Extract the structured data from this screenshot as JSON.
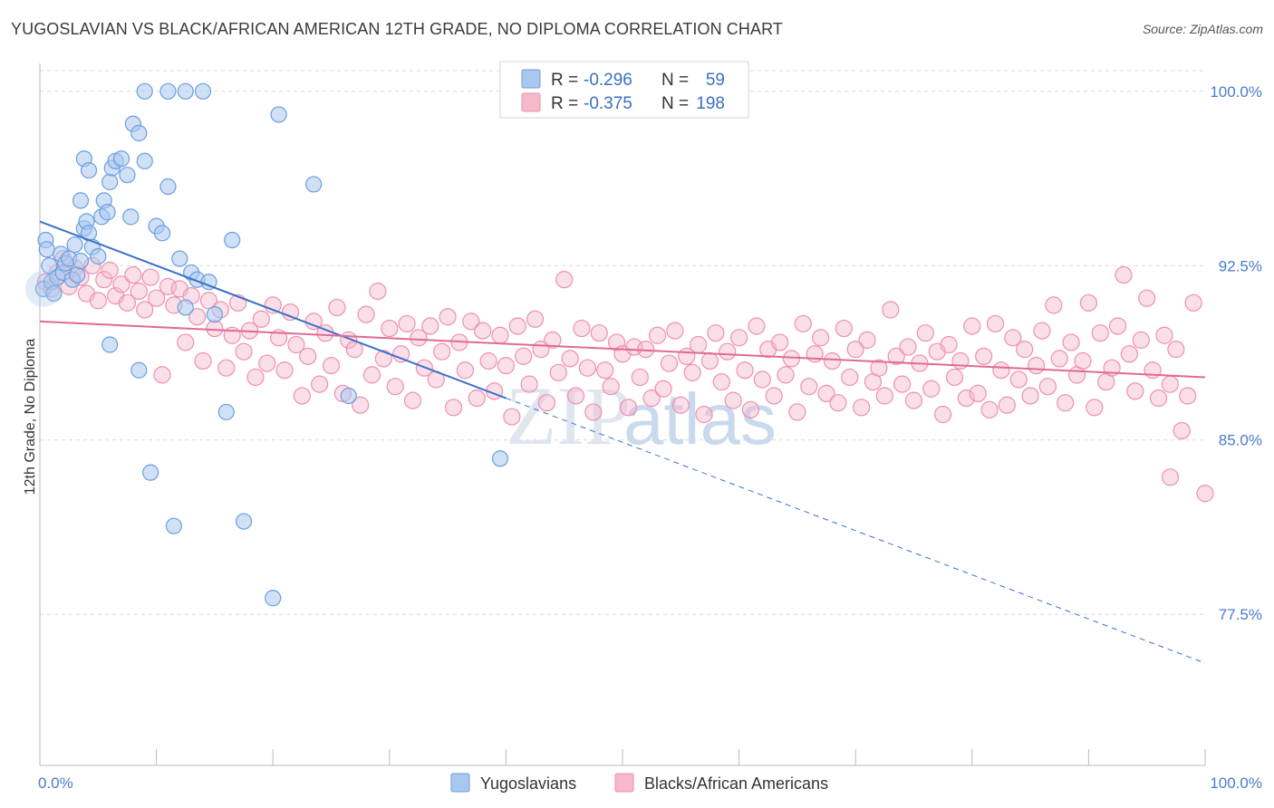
{
  "title": "YUGOSLAVIAN VS BLACK/AFRICAN AMERICAN 12TH GRADE, NO DIPLOMA CORRELATION CHART",
  "source": "Source: ZipAtlas.com",
  "watermark": "ZIPatlas",
  "colors": {
    "blue_fill": "#a9c8ef",
    "blue_stroke": "#6b9de0",
    "blue_line": "#3a72c8",
    "pink_fill": "#f6b9cc",
    "pink_stroke": "#ee8fae",
    "pink_line": "#e06a95",
    "tick_label": "#4a7cc9",
    "grid": "#d9d9d9"
  },
  "chart_data": {
    "type": "scatter",
    "xlabel": "",
    "ylabel": "12th Grade, No Diploma",
    "xlim": [
      0,
      100
    ],
    "ylim": [
      71.0,
      101.2
    ],
    "x_tick_labels": [
      "0.0%",
      "100.0%"
    ],
    "y_ticks": [
      77.5,
      85.0,
      92.5,
      100.0
    ],
    "y_tick_labels": [
      "77.5%",
      "85.0%",
      "92.5%",
      "100.0%"
    ],
    "grid": "horizontal dashed",
    "legend": {
      "placement": "top-center",
      "rows": [
        {
          "r_label": "R =",
          "r_value": "-0.296",
          "n_label": "N =",
          "n_value": "59"
        },
        {
          "r_label": "R =",
          "r_value": "-0.375",
          "n_label": "N =",
          "n_value": "198"
        }
      ]
    },
    "series": [
      {
        "name": "Yugoslavians",
        "trend": {
          "x0": 0,
          "y0": 94.4,
          "x1": 40,
          "y1": 86.8,
          "dash_to_x": 100,
          "dash_to_y": 75.4
        },
        "points": [
          [
            0.3,
            91.5
          ],
          [
            0.5,
            93.6
          ],
          [
            0.6,
            93.2
          ],
          [
            0.8,
            92.5
          ],
          [
            1.0,
            91.8
          ],
          [
            1.2,
            91.3
          ],
          [
            1.5,
            92.0
          ],
          [
            1.8,
            93.0
          ],
          [
            2.0,
            92.2
          ],
          [
            2.2,
            92.6
          ],
          [
            2.5,
            92.8
          ],
          [
            2.8,
            91.9
          ],
          [
            3.0,
            93.4
          ],
          [
            3.2,
            92.1
          ],
          [
            3.5,
            92.7
          ],
          [
            3.8,
            94.1
          ],
          [
            4.0,
            94.4
          ],
          [
            4.2,
            93.9
          ],
          [
            4.5,
            93.3
          ],
          [
            5.0,
            92.9
          ],
          [
            5.3,
            94.6
          ],
          [
            5.5,
            95.3
          ],
          [
            5.8,
            94.8
          ],
          [
            6.0,
            96.1
          ],
          [
            6.2,
            96.7
          ],
          [
            6.5,
            97.0
          ],
          [
            7.0,
            97.1
          ],
          [
            7.5,
            96.4
          ],
          [
            7.8,
            94.6
          ],
          [
            8.0,
            98.6
          ],
          [
            8.5,
            98.2
          ],
          [
            9.0,
            97.0
          ],
          [
            3.5,
            95.3
          ],
          [
            3.8,
            97.1
          ],
          [
            4.2,
            96.6
          ],
          [
            10.0,
            94.2
          ],
          [
            10.5,
            93.9
          ],
          [
            11.0,
            95.9
          ],
          [
            12.0,
            92.8
          ],
          [
            12.5,
            90.7
          ],
          [
            13.0,
            92.2
          ],
          [
            13.5,
            91.9
          ],
          [
            14.5,
            91.8
          ],
          [
            15.0,
            90.4
          ],
          [
            16.0,
            86.2
          ],
          [
            16.5,
            93.6
          ],
          [
            17.5,
            81.5
          ],
          [
            20.0,
            78.2
          ],
          [
            20.5,
            99.0
          ],
          [
            23.5,
            96.0
          ],
          [
            26.5,
            86.9
          ],
          [
            8.5,
            88.0
          ],
          [
            6.0,
            89.1
          ],
          [
            9.5,
            83.6
          ],
          [
            11.5,
            81.3
          ],
          [
            39.5,
            84.2
          ],
          [
            9.0,
            100.0
          ],
          [
            11.0,
            100.0
          ],
          [
            12.5,
            100.0
          ],
          [
            14.0,
            100.0
          ]
        ]
      },
      {
        "name": "Blacks/African Americans",
        "trend": {
          "x0": 0,
          "y0": 90.1,
          "x1": 100,
          "y1": 87.7
        },
        "points": [
          [
            0.5,
            91.8
          ],
          [
            1.0,
            91.5
          ],
          [
            1.5,
            92.2
          ],
          [
            2.0,
            92.8
          ],
          [
            2.5,
            91.6
          ],
          [
            3.0,
            92.4
          ],
          [
            3.5,
            92.0
          ],
          [
            4.0,
            91.3
          ],
          [
            4.5,
            92.5
          ],
          [
            5.0,
            91.0
          ],
          [
            5.5,
            91.9
          ],
          [
            6.0,
            92.3
          ],
          [
            6.5,
            91.2
          ],
          [
            7.0,
            91.7
          ],
          [
            7.5,
            90.9
          ],
          [
            8.0,
            92.1
          ],
          [
            8.5,
            91.4
          ],
          [
            9.0,
            90.6
          ],
          [
            9.5,
            92.0
          ],
          [
            10.0,
            91.1
          ],
          [
            10.5,
            87.8
          ],
          [
            11.0,
            91.6
          ],
          [
            11.5,
            90.8
          ],
          [
            12.0,
            91.5
          ],
          [
            12.5,
            89.2
          ],
          [
            13.0,
            91.2
          ],
          [
            13.5,
            90.3
          ],
          [
            14.0,
            88.4
          ],
          [
            14.5,
            91.0
          ],
          [
            15.0,
            89.8
          ],
          [
            15.5,
            90.6
          ],
          [
            16.0,
            88.1
          ],
          [
            16.5,
            89.5
          ],
          [
            17.0,
            90.9
          ],
          [
            17.5,
            88.8
          ],
          [
            18.0,
            89.7
          ],
          [
            18.5,
            87.7
          ],
          [
            19.0,
            90.2
          ],
          [
            19.5,
            88.3
          ],
          [
            20.0,
            90.8
          ],
          [
            20.5,
            89.4
          ],
          [
            21.0,
            88.0
          ],
          [
            21.5,
            90.5
          ],
          [
            22.0,
            89.1
          ],
          [
            22.5,
            86.9
          ],
          [
            23.0,
            88.6
          ],
          [
            23.5,
            90.1
          ],
          [
            24.0,
            87.4
          ],
          [
            24.5,
            89.6
          ],
          [
            25.0,
            88.2
          ],
          [
            25.5,
            90.7
          ],
          [
            26.0,
            87.0
          ],
          [
            26.5,
            89.3
          ],
          [
            27.0,
            88.9
          ],
          [
            27.5,
            86.5
          ],
          [
            28.0,
            90.4
          ],
          [
            28.5,
            87.8
          ],
          [
            29.0,
            91.4
          ],
          [
            29.5,
            88.5
          ],
          [
            30.0,
            89.8
          ],
          [
            30.5,
            87.3
          ],
          [
            31.0,
            88.7
          ],
          [
            31.5,
            90.0
          ],
          [
            32.0,
            86.7
          ],
          [
            32.5,
            89.4
          ],
          [
            33.0,
            88.1
          ],
          [
            33.5,
            89.9
          ],
          [
            34.0,
            87.6
          ],
          [
            34.5,
            88.8
          ],
          [
            35.0,
            90.3
          ],
          [
            35.5,
            86.4
          ],
          [
            36.0,
            89.2
          ],
          [
            36.5,
            88.0
          ],
          [
            37.0,
            90.1
          ],
          [
            37.5,
            86.8
          ],
          [
            38.0,
            89.7
          ],
          [
            38.5,
            88.4
          ],
          [
            39.0,
            87.1
          ],
          [
            39.5,
            89.5
          ],
          [
            40.0,
            88.2
          ],
          [
            40.5,
            86.0
          ],
          [
            41.0,
            89.9
          ],
          [
            41.5,
            88.6
          ],
          [
            42.0,
            87.4
          ],
          [
            42.5,
            90.2
          ],
          [
            43.0,
            88.9
          ],
          [
            43.5,
            86.6
          ],
          [
            44.0,
            89.3
          ],
          [
            44.5,
            87.9
          ],
          [
            45.0,
            91.9
          ],
          [
            45.5,
            88.5
          ],
          [
            46.0,
            86.9
          ],
          [
            46.5,
            89.8
          ],
          [
            47.0,
            88.1
          ],
          [
            47.5,
            86.2
          ],
          [
            48.0,
            89.6
          ],
          [
            48.5,
            88.0
          ],
          [
            49.0,
            87.3
          ],
          [
            49.5,
            89.2
          ],
          [
            50.0,
            88.7
          ],
          [
            50.5,
            86.4
          ],
          [
            51.0,
            89.0
          ],
          [
            51.5,
            87.7
          ],
          [
            52.0,
            88.9
          ],
          [
            52.5,
            86.8
          ],
          [
            53.0,
            89.5
          ],
          [
            53.5,
            87.2
          ],
          [
            54.0,
            88.3
          ],
          [
            54.5,
            89.7
          ],
          [
            55.0,
            86.5
          ],
          [
            55.5,
            88.6
          ],
          [
            56.0,
            87.9
          ],
          [
            56.5,
            89.1
          ],
          [
            57.0,
            86.1
          ],
          [
            57.5,
            88.4
          ],
          [
            58.0,
            89.6
          ],
          [
            58.5,
            87.5
          ],
          [
            59.0,
            88.8
          ],
          [
            59.5,
            86.7
          ],
          [
            60.0,
            89.4
          ],
          [
            60.5,
            88.0
          ],
          [
            61.0,
            86.3
          ],
          [
            61.5,
            89.9
          ],
          [
            62.0,
            87.6
          ],
          [
            62.5,
            88.9
          ],
          [
            63.0,
            86.9
          ],
          [
            63.5,
            89.2
          ],
          [
            64.0,
            87.8
          ],
          [
            64.5,
            88.5
          ],
          [
            65.0,
            86.2
          ],
          [
            65.5,
            90.0
          ],
          [
            66.0,
            87.3
          ],
          [
            66.5,
            88.7
          ],
          [
            67.0,
            89.4
          ],
          [
            67.5,
            87.0
          ],
          [
            68.0,
            88.4
          ],
          [
            68.5,
            86.6
          ],
          [
            69.0,
            89.8
          ],
          [
            69.5,
            87.7
          ],
          [
            70.0,
            88.9
          ],
          [
            70.5,
            86.4
          ],
          [
            71.0,
            89.3
          ],
          [
            71.5,
            87.5
          ],
          [
            72.0,
            88.1
          ],
          [
            72.5,
            86.9
          ],
          [
            73.0,
            90.6
          ],
          [
            73.5,
            88.6
          ],
          [
            74.0,
            87.4
          ],
          [
            74.5,
            89.0
          ],
          [
            75.0,
            86.7
          ],
          [
            75.5,
            88.3
          ],
          [
            76.0,
            89.6
          ],
          [
            76.5,
            87.2
          ],
          [
            77.0,
            88.8
          ],
          [
            77.5,
            86.1
          ],
          [
            78.0,
            89.1
          ],
          [
            78.5,
            87.7
          ],
          [
            79.0,
            88.4
          ],
          [
            79.5,
            86.8
          ],
          [
            80.0,
            89.9
          ],
          [
            80.5,
            87.0
          ],
          [
            81.0,
            88.6
          ],
          [
            81.5,
            86.3
          ],
          [
            82.0,
            90.0
          ],
          [
            82.5,
            88.0
          ],
          [
            83.0,
            86.5
          ],
          [
            83.5,
            89.4
          ],
          [
            84.0,
            87.6
          ],
          [
            84.5,
            88.9
          ],
          [
            85.0,
            86.9
          ],
          [
            85.5,
            88.2
          ],
          [
            86.0,
            89.7
          ],
          [
            86.5,
            87.3
          ],
          [
            87.0,
            90.8
          ],
          [
            87.5,
            88.5
          ],
          [
            88.0,
            86.6
          ],
          [
            88.5,
            89.2
          ],
          [
            89.0,
            87.8
          ],
          [
            89.5,
            88.4
          ],
          [
            90.0,
            90.9
          ],
          [
            90.5,
            86.4
          ],
          [
            91.0,
            89.6
          ],
          [
            91.5,
            87.5
          ],
          [
            92.0,
            88.1
          ],
          [
            92.5,
            89.9
          ],
          [
            93.0,
            92.1
          ],
          [
            93.5,
            88.7
          ],
          [
            94.0,
            87.1
          ],
          [
            94.5,
            89.3
          ],
          [
            95.0,
            91.1
          ],
          [
            95.5,
            88.0
          ],
          [
            96.0,
            86.8
          ],
          [
            96.5,
            89.5
          ],
          [
            97.0,
            87.4
          ],
          [
            97.5,
            88.9
          ],
          [
            98.0,
            85.4
          ],
          [
            98.5,
            86.9
          ],
          [
            99.0,
            90.9
          ],
          [
            100.0,
            82.7
          ],
          [
            97.0,
            83.4
          ]
        ]
      }
    ]
  },
  "legend_bottom": [
    {
      "name": "Yugoslavians"
    },
    {
      "name": "Blacks/African Americans"
    }
  ]
}
